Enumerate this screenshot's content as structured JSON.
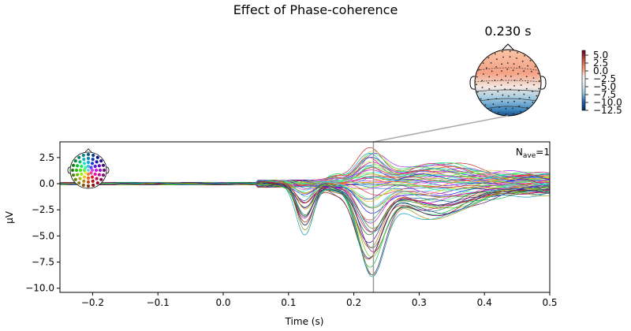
{
  "chart_data": {
    "type": "line",
    "title": "Effect of Phase-coherence",
    "xlabel": "Time (s)",
    "ylabel": "µV",
    "xlim": [
      -0.25,
      0.5
    ],
    "ylim": [
      -10.4,
      4.0
    ],
    "x_ticks": [
      -0.2,
      -0.1,
      0.0,
      0.1,
      0.2,
      0.3,
      0.4,
      0.5
    ],
    "x_tick_labels": [
      "−0.2",
      "−0.1",
      "0.0",
      "0.1",
      "0.2",
      "0.3",
      "0.4",
      "0.5"
    ],
    "y_ticks": [
      2.5,
      0.0,
      -2.5,
      -5.0,
      -7.5,
      -10.0
    ],
    "y_tick_labels": [
      "2.5",
      "0.0",
      "−2.5",
      "−5.0",
      "−7.5",
      "−10.0"
    ],
    "n_channels": 60,
    "peak_positive_uV": 3.0,
    "peak_negative_uV": -9.5,
    "early_negative_uV": -4.6,
    "early_negative_time_s": 0.125,
    "main_negative_time_s": 0.225,
    "late_negative_time_s": 0.32,
    "annotation": {
      "nave_base": "N",
      "nave_sub": "ave",
      "nave_value": "=1"
    },
    "topomap": {
      "time_s": 0.23,
      "title": "0.230 s"
    },
    "colorbar": {
      "range": [
        -12.5,
        6.5
      ],
      "tick_values": [
        5.0,
        2.5,
        0.0,
        -2.5,
        -5.0,
        -7.5,
        -10.0,
        -12.5
      ],
      "tick_labels": [
        "5.0",
        "2.5",
        "0.0",
        "−2.5",
        "−5.0",
        "−7.5",
        "−10.0",
        "−12.5"
      ]
    },
    "marker_time_s": 0.23
  }
}
